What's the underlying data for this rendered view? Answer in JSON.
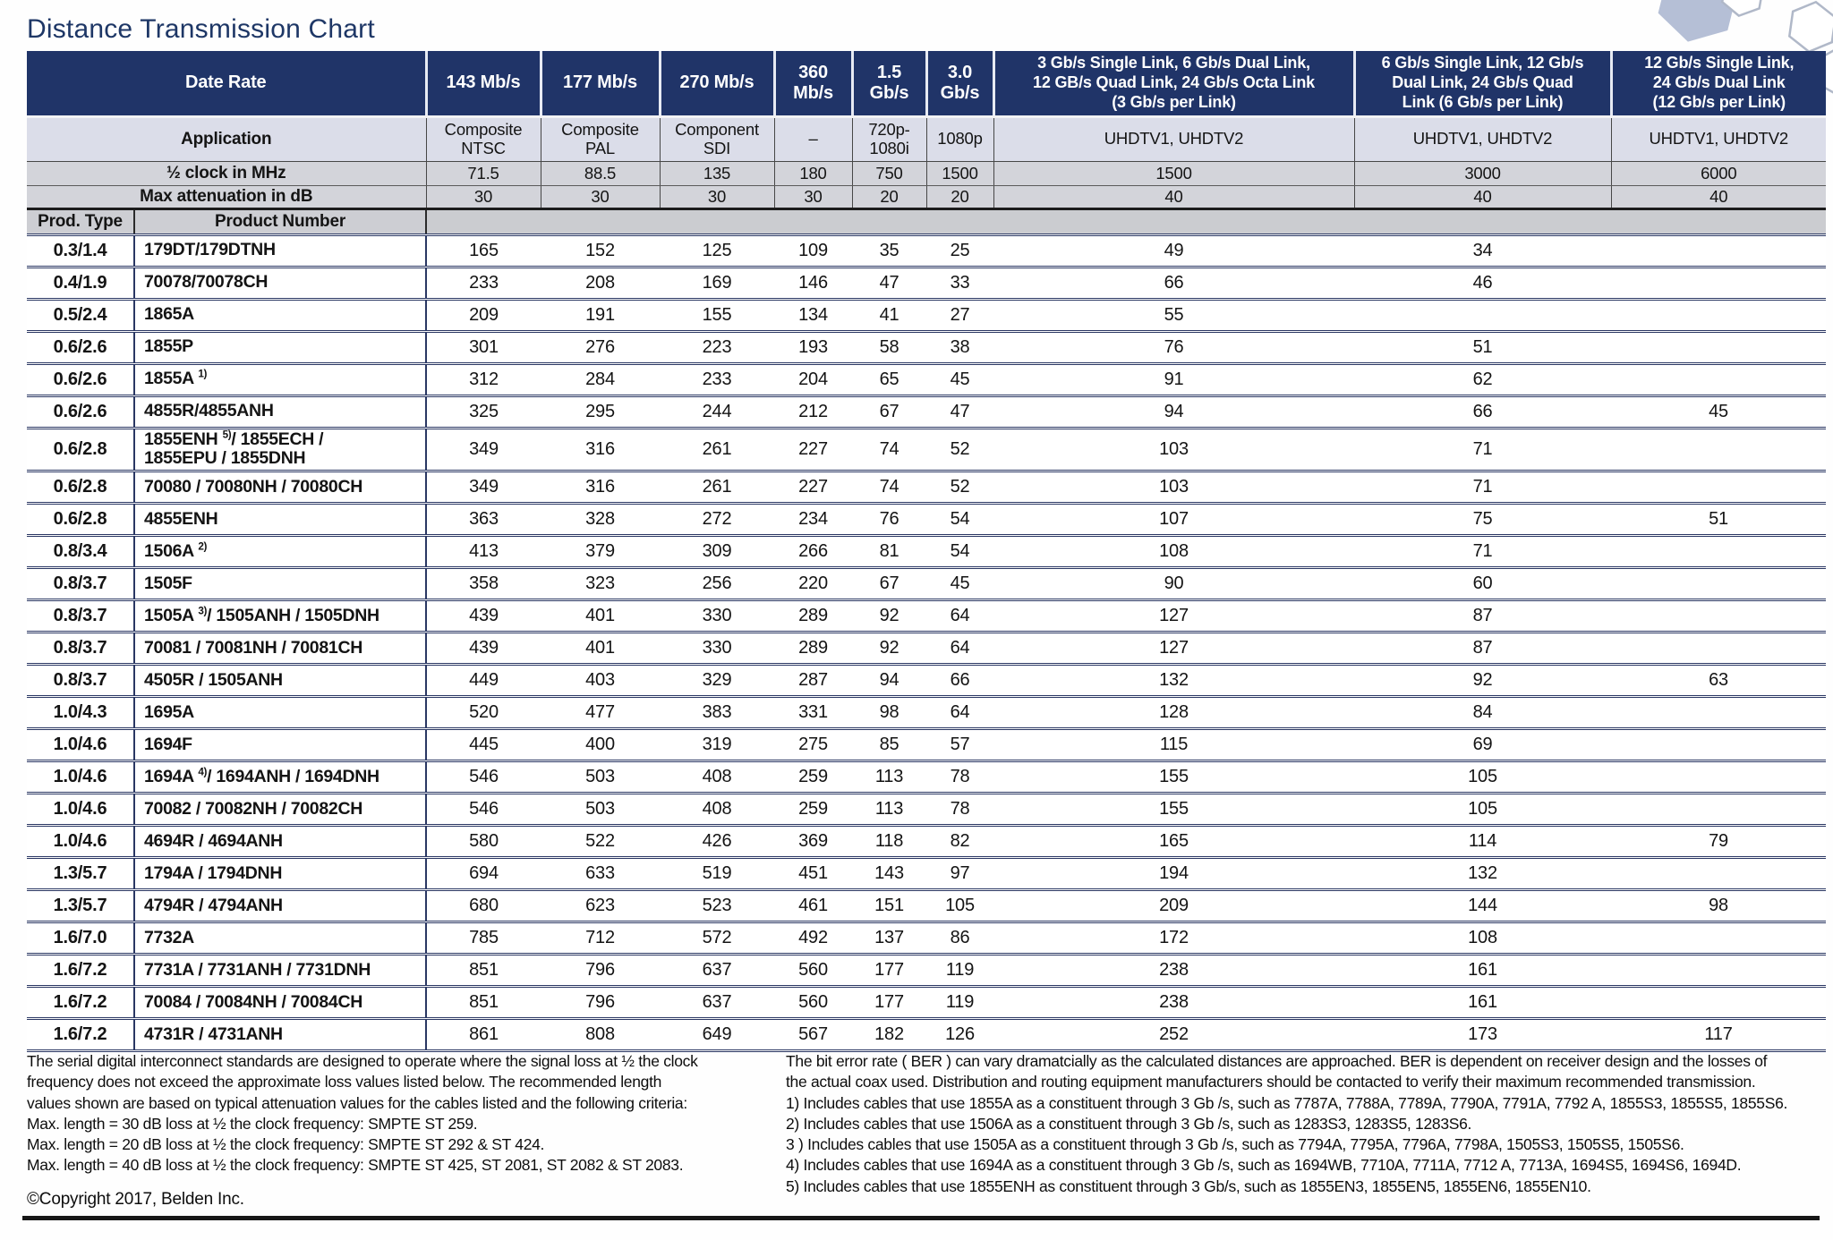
{
  "title": "Distance Transmission Chart",
  "colors": {
    "header_blue": "#203468",
    "application_row": "#dbdde9",
    "clock_row_gray": "#d3d4da",
    "band_gray": "#cbccd0",
    "grid_navy": "#2a3763",
    "title_navy": "#1e3766",
    "hexagon_fill": "#b5bfd6"
  },
  "icons": {
    "hexagon_decoration": "hexagon-cluster"
  },
  "table": {
    "corner_labels": {
      "date_rate": "Date Rate",
      "application": "Application",
      "half_clock": "½ clock in MHz",
      "max_attenuation": "Max attenuation in dB",
      "prod_type": "Prod. Type",
      "product_number": "Product Number"
    },
    "data_rate_headers": [
      "143 Mb/s",
      "177 Mb/s",
      "270 Mb/s",
      "360\nMb/s",
      "1.5\nGb/s",
      "3.0\nGb/s",
      "3 Gb/s Single Link, 6 Gb/s Dual Link,\n12 GB/s Quad Link, 24 Gb/s Octa Link\n(3 Gb/s per Link)",
      "6 Gb/s Single Link, 12 Gb/s\nDual Link, 24 Gb/s Quad\nLink (6 Gb/s per Link)",
      "12 Gb/s Single Link,\n24 Gb/s Dual Link\n(12 Gb/s per Link)"
    ],
    "applications": [
      "Composite\nNTSC",
      "Composite\nPAL",
      "Component\nSDI",
      "–",
      "720p-\n1080i",
      "1080p",
      "UHDTV1, UHDTV2",
      "UHDTV1, UHDTV2",
      "UHDTV1, UHDTV2"
    ],
    "half_clock_mhz": [
      "71.5",
      "88.5",
      "135",
      "180",
      "750",
      "1500",
      "1500",
      "3000",
      "6000"
    ],
    "max_attenuation_db": [
      "30",
      "30",
      "30",
      "30",
      "20",
      "20",
      "40",
      "40",
      "40"
    ],
    "rows": [
      {
        "prod_type": "0.3/1.4",
        "product": "179DT/179DTNH",
        "values": [
          "165",
          "152",
          "125",
          "109",
          "35",
          "25",
          "49",
          "34",
          ""
        ]
      },
      {
        "prod_type": "0.4/1.9",
        "product": "70078/70078CH",
        "values": [
          "233",
          "208",
          "169",
          "146",
          "47",
          "33",
          "66",
          "46",
          ""
        ]
      },
      {
        "prod_type": "0.5/2.4",
        "product": "1865A",
        "values": [
          "209",
          "191",
          "155",
          "134",
          "41",
          "27",
          "55",
          "",
          ""
        ]
      },
      {
        "prod_type": "0.6/2.6",
        "product": "1855P",
        "values": [
          "301",
          "276",
          "223",
          "193",
          "58",
          "38",
          "76",
          "51",
          ""
        ]
      },
      {
        "prod_type": "0.6/2.6",
        "product": "1855A ^{1)}",
        "values": [
          "312",
          "284",
          "233",
          "204",
          "65",
          "45",
          "91",
          "62",
          ""
        ]
      },
      {
        "prod_type": "0.6/2.6",
        "product": "4855R/4855ANH",
        "values": [
          "325",
          "295",
          "244",
          "212",
          "67",
          "47",
          "94",
          "66",
          "45"
        ]
      },
      {
        "prod_type": "0.6/2.8",
        "product": "1855ENH ^{5)}/ 1855ECH /\n1855EPU / 1855DNH",
        "values": [
          "349",
          "316",
          "261",
          "227",
          "74",
          "52",
          "103",
          "71",
          ""
        ]
      },
      {
        "prod_type": "0.6/2.8",
        "product": "70080 / 70080NH / 70080CH",
        "values": [
          "349",
          "316",
          "261",
          "227",
          "74",
          "52",
          "103",
          "71",
          ""
        ]
      },
      {
        "prod_type": "0.6/2.8",
        "product": "4855ENH",
        "values": [
          "363",
          "328",
          "272",
          "234",
          "76",
          "54",
          "107",
          "75",
          "51"
        ]
      },
      {
        "prod_type": "0.8/3.4",
        "product": "1506A ^{2)}",
        "values": [
          "413",
          "379",
          "309",
          "266",
          "81",
          "54",
          "108",
          "71",
          ""
        ]
      },
      {
        "prod_type": "0.8/3.7",
        "product": "1505F",
        "values": [
          "358",
          "323",
          "256",
          "220",
          "67",
          "45",
          "90",
          "60",
          ""
        ]
      },
      {
        "prod_type": "0.8/3.7",
        "product": "1505A ^{3)}/ 1505ANH / 1505DNH",
        "values": [
          "439",
          "401",
          "330",
          "289",
          "92",
          "64",
          "127",
          "87",
          ""
        ]
      },
      {
        "prod_type": "0.8/3.7",
        "product": "70081 / 70081NH / 70081CH",
        "values": [
          "439",
          "401",
          "330",
          "289",
          "92",
          "64",
          "127",
          "87",
          ""
        ]
      },
      {
        "prod_type": "0.8/3.7",
        "product": "4505R / 1505ANH",
        "values": [
          "449",
          "403",
          "329",
          "287",
          "94",
          "66",
          "132",
          "92",
          "63"
        ]
      },
      {
        "prod_type": "1.0/4.3",
        "product": "1695A",
        "values": [
          "520",
          "477",
          "383",
          "331",
          "98",
          "64",
          "128",
          "84",
          ""
        ]
      },
      {
        "prod_type": "1.0/4.6",
        "product": "1694F",
        "values": [
          "445",
          "400",
          "319",
          "275",
          "85",
          "57",
          "115",
          "69",
          ""
        ]
      },
      {
        "prod_type": "1.0/4.6",
        "product": "1694A ^{4)}/ 1694ANH / 1694DNH",
        "values": [
          "546",
          "503",
          "408",
          "259",
          "113",
          "78",
          "155",
          "105",
          ""
        ]
      },
      {
        "prod_type": "1.0/4.6",
        "product": "70082 / 70082NH / 70082CH",
        "values": [
          "546",
          "503",
          "408",
          "259",
          "113",
          "78",
          "155",
          "105",
          ""
        ]
      },
      {
        "prod_type": "1.0/4.6",
        "product": "4694R / 4694ANH",
        "values": [
          "580",
          "522",
          "426",
          "369",
          "118",
          "82",
          "165",
          "114",
          "79"
        ]
      },
      {
        "prod_type": "1.3/5.7",
        "product": "1794A / 1794DNH",
        "values": [
          "694",
          "633",
          "519",
          "451",
          "143",
          "97",
          "194",
          "132",
          ""
        ]
      },
      {
        "prod_type": "1.3/5.7",
        "product": "4794R / 4794ANH",
        "values": [
          "680",
          "623",
          "523",
          "461",
          "151",
          "105",
          "209",
          "144",
          "98"
        ]
      },
      {
        "prod_type": "1.6/7.0",
        "product": "7732A",
        "values": [
          "785",
          "712",
          "572",
          "492",
          "137",
          "86",
          "172",
          "108",
          ""
        ]
      },
      {
        "prod_type": "1.6/7.2",
        "product": "7731A / 7731ANH / 7731DNH",
        "values": [
          "851",
          "796",
          "637",
          "560",
          "177",
          "119",
          "238",
          "161",
          ""
        ]
      },
      {
        "prod_type": "1.6/7.2",
        "product": "70084 / 70084NH / 70084CH",
        "values": [
          "851",
          "796",
          "637",
          "560",
          "177",
          "119",
          "238",
          "161",
          ""
        ]
      },
      {
        "prod_type": "1.6/7.2",
        "product": "4731R / 4731ANH",
        "values": [
          "861",
          "808",
          "649",
          "567",
          "182",
          "126",
          "252",
          "173",
          "117"
        ]
      }
    ]
  },
  "footer": {
    "left_lines": [
      "The serial digital interconnect standards are designed to operate where the signal loss at ½ the clock",
      "frequency does not exceed the approximate loss values listed below. The recommended length",
      "values shown are based on typical attenuation values for the cables listed and the following criteria:",
      "Max. length = 30 dB loss at ½ the clock frequency: SMPTE ST 259.",
      "Max. length = 20 dB loss at ½ the clock frequency: SMPTE ST 292 & ST 424.",
      "Max. length = 40 dB loss at ½ the clock frequency: SMPTE ST 425, ST 2081, ST 2082 & ST 2083."
    ],
    "copyright": "©Copyright 2017, Belden Inc.",
    "right_lines": [
      "The bit error rate ( BER ) can vary dramatcially as the calculated distances are approached. BER is dependent on receiver design and the losses of",
      "the actual coax used. Distribution and routing equipment manufacturers should be contacted to verify their maximum recommended transmission.",
      "1) Includes cables that use 1855A as a constituent through 3 Gb /s, such as 7787A, 7788A, 7789A, 7790A, 7791A, 7792 A, 1855S3, 1855S5, 1855S6.",
      "2) Includes cables that use 1506A as a constituent through 3 Gb /s, such as 1283S3, 1283S5, 1283S6.",
      "3 ) Includes cables that use 1505A as a constituent through 3 Gb /s, such as 7794A, 7795A, 7796A, 7798A, 1505S3, 1505S5, 1505S6.",
      "4) Includes cables that use 1694A as a constituent through 3 Gb /s, such as 1694WB, 7710A, 7711A, 7712 A, 7713A, 1694S5, 1694S6, 1694D.",
      "5) Includes cables that use 1855ENH as constituent through 3 Gb/s, such as 1855EN3, 1855EN5, 1855EN6, 1855EN10."
    ]
  }
}
